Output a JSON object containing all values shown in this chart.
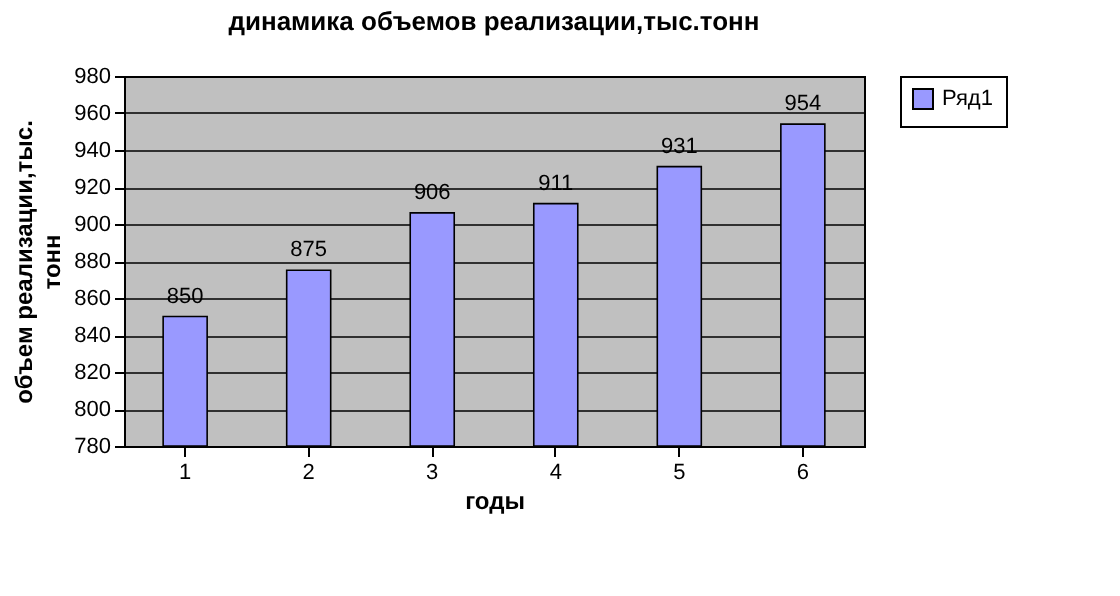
{
  "chart_data": {
    "type": "bar",
    "title": "динамика объемов реализации,тыс.тонн",
    "xlabel": "годы",
    "ylabel": "объем реализации,тыс. тонн",
    "categories": [
      "1",
      "2",
      "3",
      "4",
      "5",
      "6"
    ],
    "series": [
      {
        "name": "Ряд1",
        "color": "#9999ff",
        "values": [
          850,
          875,
          906,
          911,
          931,
          954
        ]
      }
    ],
    "ylim": [
      780,
      980
    ],
    "yticks": [
      780,
      800,
      820,
      840,
      860,
      880,
      900,
      920,
      940,
      960,
      980
    ],
    "grid": "y",
    "legend": "right",
    "data_labels": true
  }
}
